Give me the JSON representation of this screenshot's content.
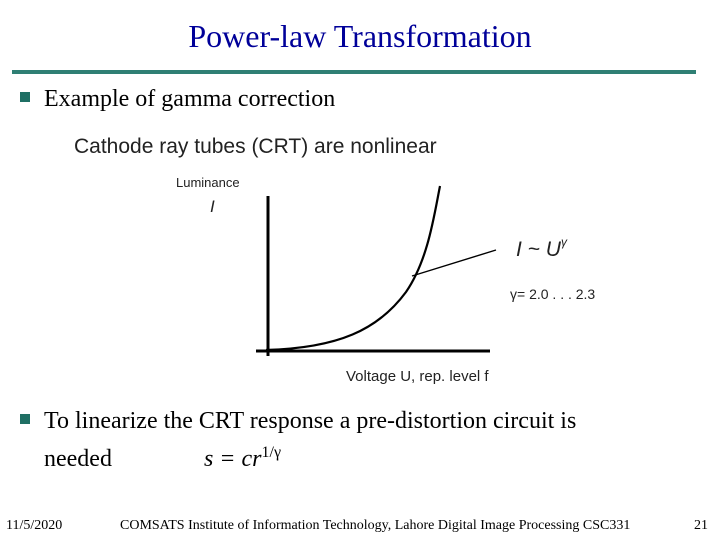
{
  "slide": {
    "title": "Power-law Transformation",
    "bullet1": "Example of gamma correction",
    "bullet2_line1": "To linearize the CRT response a pre-distortion circuit is",
    "bullet2_line2": "needed",
    "formula_base": "s =  cr",
    "formula_exponent": "1/γ"
  },
  "figure": {
    "heading": "Cathode ray tubes (CRT) are nonlinear",
    "y_label": "Luminance",
    "y_symbol": "I",
    "x_label": "Voltage U, rep. level f",
    "curve_label": "I ~ U",
    "curve_label_exponent": "γ",
    "gamma_range": "γ= 2.0 . . . 2.3"
  },
  "footer": {
    "date": "11/5/2020",
    "center": "COMSATS Institute of Information Technology, Lahore   Digital Image Processing CSC331",
    "page": "21"
  },
  "colors": {
    "title": "#000099",
    "rule": "#2f7f74",
    "bullet": "#1f6f64"
  }
}
